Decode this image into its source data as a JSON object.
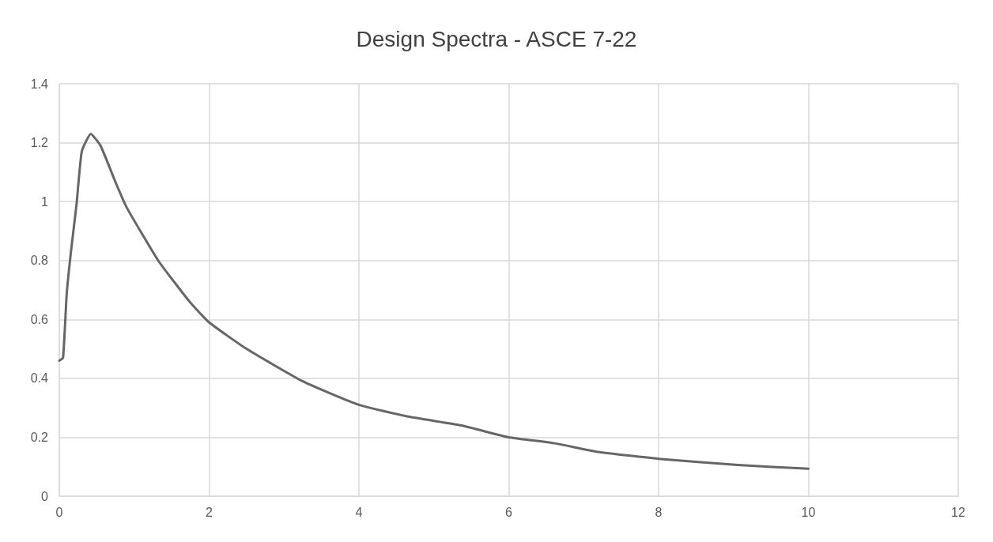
{
  "chart_data": {
    "type": "line",
    "title": "Design Spectra - ASCE 7-22",
    "x": [
      0,
      0.05,
      0.1,
      0.16,
      0.23,
      0.3,
      0.42,
      0.55,
      0.76,
      0.9,
      1.32,
      1.74,
      2.0,
      2.5,
      3.25,
      4.0,
      4.66,
      5.37,
      6.0,
      6.6,
      7.2,
      8.0,
      9.06,
      10
    ],
    "series": [
      {
        "color": "#666666",
        "values": [
          0.46,
          0.47,
          0.69,
          0.84,
          0.99,
          1.17,
          1.23,
          1.19,
          1.06,
          0.98,
          0.8,
          0.66,
          0.59,
          0.5,
          0.39,
          0.31,
          0.27,
          0.24,
          0.2,
          0.18,
          0.15,
          0.127,
          0.106,
          0.093
        ]
      }
    ],
    "xlim": [
      0,
      12
    ],
    "xticks": [
      0,
      2,
      4,
      6,
      8,
      10,
      12
    ],
    "ylim": [
      0,
      1.4
    ],
    "yticks": [
      0,
      0.2,
      0.4,
      0.6,
      0.8,
      1,
      1.2,
      1.4
    ],
    "grid": true,
    "marker": "none",
    "line_style": "solid"
  }
}
